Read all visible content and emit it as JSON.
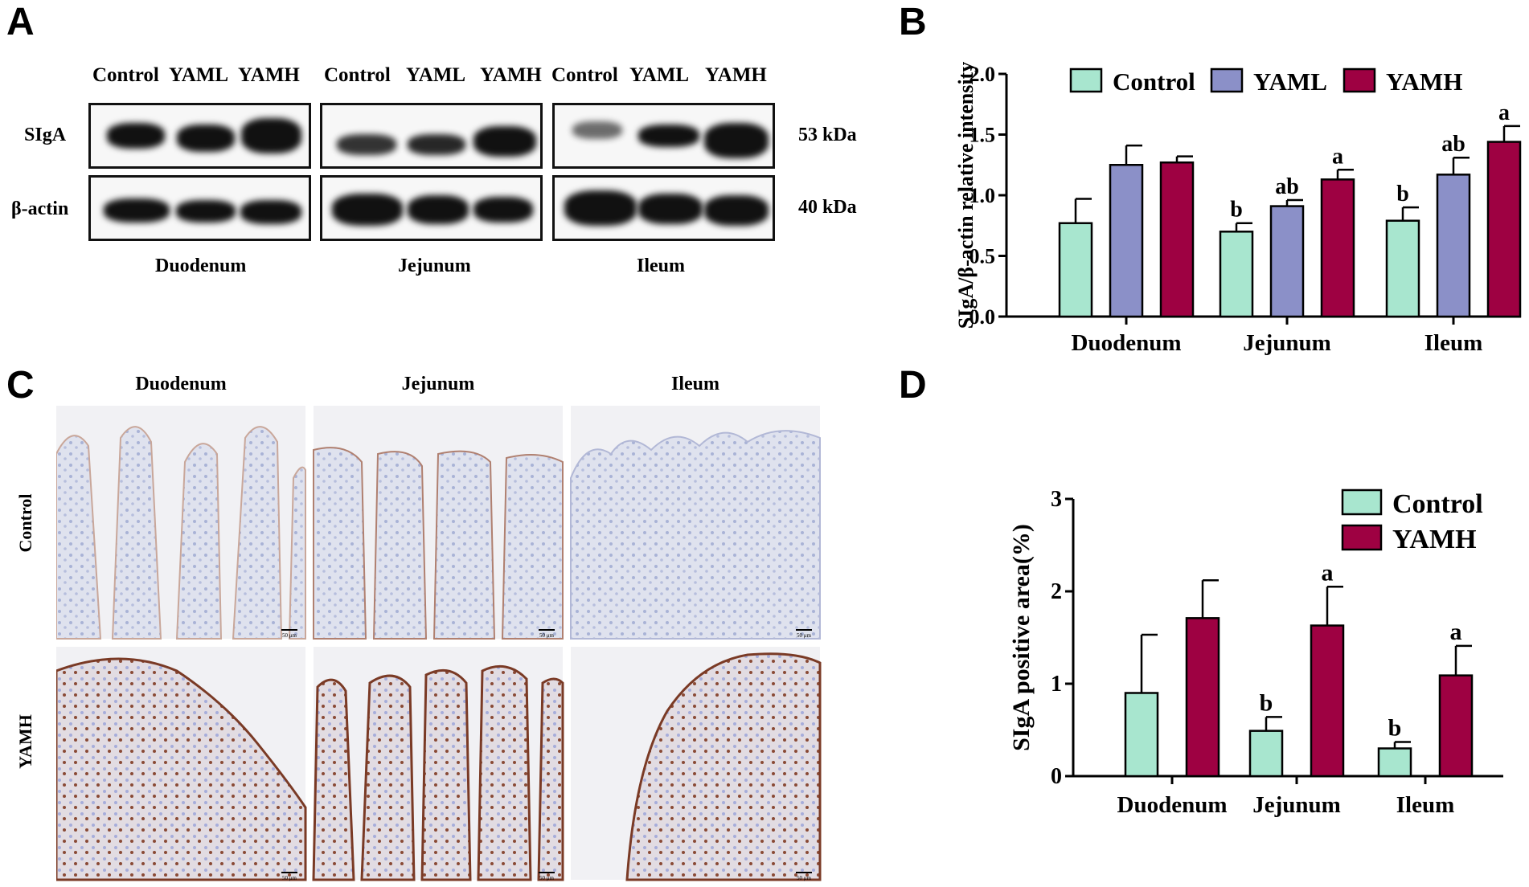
{
  "panels": {
    "a": "A",
    "b": "B",
    "c": "C",
    "d": "D"
  },
  "blot": {
    "lane_labels": [
      "Control",
      "YAML",
      "YAMH"
    ],
    "row_labels": [
      "SIgA",
      "β-actin"
    ],
    "kda": [
      "53 kDa",
      "40 kDa"
    ],
    "tissues": [
      "Duodenum",
      "Jejunum",
      "Ileum"
    ]
  },
  "ihc": {
    "tissues": [
      "Duodenum",
      "Jejunum",
      "Ileum"
    ],
    "groups": [
      "Control",
      "YAMH"
    ],
    "scale_bar": "50 μm"
  },
  "colors": {
    "control": "#a8e6cf",
    "yaml": "#8b90c8",
    "yamh": "#9e0142"
  },
  "chart_data": [
    {
      "type": "bar",
      "panel": "B",
      "categories": [
        "Duodenum",
        "Jejunum",
        "Ileum"
      ],
      "ylabel": "SIgA/β-actin relative intensity",
      "ylim": [
        0,
        2.0
      ],
      "yticks": [
        "0.0",
        "0.5",
        "1.0",
        "1.5",
        "2.0"
      ],
      "legend_position": "top",
      "series": [
        {
          "name": "Control",
          "values": [
            0.77,
            0.7,
            0.79
          ],
          "errors": [
            0.2,
            0.07,
            0.11
          ],
          "letters": [
            "",
            "b",
            "b"
          ]
        },
        {
          "name": "YAML",
          "values": [
            1.25,
            0.91,
            1.17
          ],
          "errors": [
            0.16,
            0.05,
            0.14
          ],
          "letters": [
            "",
            "ab",
            "ab"
          ]
        },
        {
          "name": "YAMH",
          "values": [
            1.27,
            1.13,
            1.44
          ],
          "errors": [
            0.05,
            0.08,
            0.13
          ],
          "letters": [
            "",
            "a",
            "a"
          ]
        }
      ]
    },
    {
      "type": "bar",
      "panel": "D",
      "categories": [
        "Duodenum",
        "Jejunum",
        "Ileum"
      ],
      "ylabel": "SIgA positive area(%)",
      "ylim": [
        0,
        3
      ],
      "yticks": [
        "0",
        "1",
        "2",
        "3"
      ],
      "legend_position": "top-right",
      "series": [
        {
          "name": "Control",
          "values": [
            0.9,
            0.49,
            0.3
          ],
          "errors": [
            0.63,
            0.15,
            0.07
          ],
          "letters": [
            "",
            "b",
            "b"
          ]
        },
        {
          "name": "YAMH",
          "values": [
            1.71,
            1.63,
            1.09
          ],
          "errors": [
            0.41,
            0.42,
            0.32
          ],
          "letters": [
            "",
            "a",
            "a"
          ]
        }
      ]
    }
  ]
}
